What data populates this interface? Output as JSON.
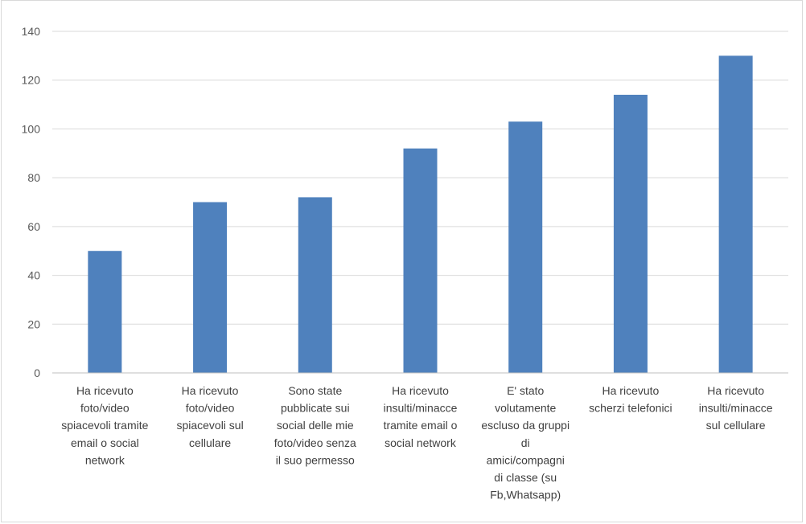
{
  "chart_data": {
    "type": "bar",
    "title": "",
    "xlabel": "",
    "ylabel": "",
    "ylim": [
      0,
      140
    ],
    "yticks": [
      0,
      20,
      40,
      60,
      80,
      100,
      120,
      140
    ],
    "grid": true,
    "legend": "none",
    "bar_color": "#4f81bd",
    "categories": [
      [
        "Ha ricevuto",
        "foto/video",
        "spiacevoli tramite",
        "email o social",
        "network"
      ],
      [
        "Ha ricevuto",
        "foto/video",
        "spiacevoli sul",
        "cellulare"
      ],
      [
        "Sono state",
        "pubblicate sui",
        "social delle mie",
        "foto/video senza",
        "il suo permesso"
      ],
      [
        "Ha ricevuto",
        "insulti/minacce",
        "tramite email o",
        "social network"
      ],
      [
        "E' stato",
        "volutamente",
        "escluso da gruppi",
        "di",
        "amici/compagni",
        "di classe (su",
        "Fb,Whatsapp)"
      ],
      [
        "Ha ricevuto",
        "scherzi telefonici"
      ],
      [
        "Ha ricevuto",
        "insulti/minacce",
        "sul cellulare"
      ]
    ],
    "values": [
      50,
      70,
      72,
      92,
      103,
      114,
      130
    ]
  }
}
